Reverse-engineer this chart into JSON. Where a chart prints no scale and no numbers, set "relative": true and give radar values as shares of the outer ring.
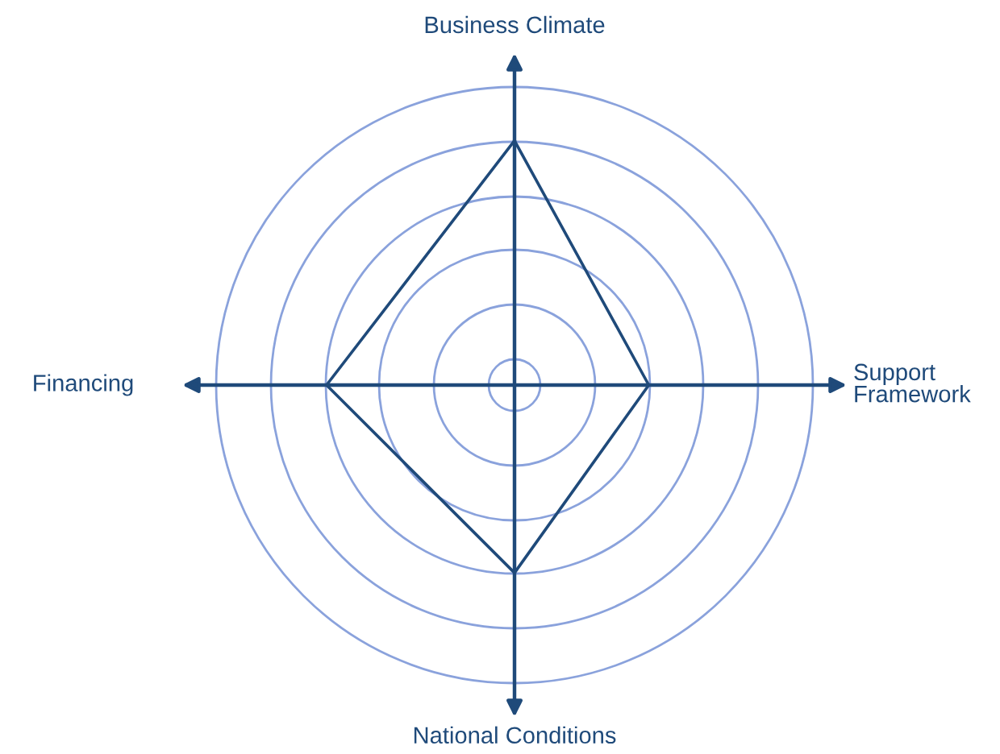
{
  "chart_data": {
    "type": "radar",
    "relative": true,
    "grid": true,
    "marker": "none",
    "categories": [
      "Business Climate",
      "Support\nFramework",
      "National Conditions",
      "Financing"
    ],
    "series": [
      {
        "color": "#1f4a7a",
        "values": [
          0.82,
          0.45,
          0.63,
          0.63
        ]
      }
    ]
  }
}
